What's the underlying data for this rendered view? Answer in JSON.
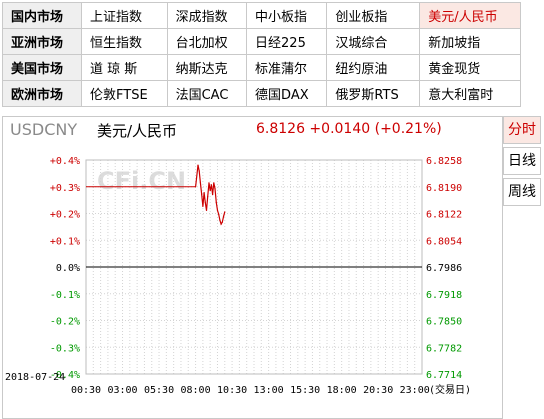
{
  "markets": [
    {
      "region": "国内市场",
      "items": [
        "上证指数",
        "深成指数",
        "中小板指",
        "创业板指",
        "美元/人民币"
      ]
    },
    {
      "region": "亚洲市场",
      "items": [
        "恒生指数",
        "台北加权",
        "日经225",
        "汉城综合",
        "新加坡指"
      ]
    },
    {
      "region": "美国市场",
      "items": [
        "道 琼 斯",
        "纳斯达克",
        "标准蒲尔",
        "纽约原油",
        "黄金现货"
      ]
    },
    {
      "region": "欧洲市场",
      "items": [
        "伦敦FTSE",
        "法国CAC",
        "德国DAX",
        "俄罗斯RTS",
        "意大利富时"
      ]
    }
  ],
  "active_item": "美元/人民币",
  "chart_header": {
    "symbol": "USDCNY",
    "name": "美元/人民币",
    "value_line": "6.8126 +0.0140 (+0.21%)"
  },
  "tabs": [
    "分时",
    "日线",
    "周线"
  ],
  "active_tab": "分时",
  "watermark": "CFi.CN",
  "date_label": "2018-07-24",
  "colors": {
    "up": "#cc0000",
    "down": "#009900",
    "line": "#cc0000",
    "zero": "#000000",
    "grid": "#d4d4d4"
  },
  "chart_data": {
    "type": "line",
    "title": "",
    "xlabel": "(交易日)",
    "ylabel": "",
    "x_ticks": [
      "00:30",
      "03:00",
      "05:30",
      "08:00",
      "10:30",
      "13:00",
      "15:30",
      "18:00",
      "20:30",
      "23:00"
    ],
    "x_range": [
      "00:30",
      "23:30"
    ],
    "left_ticks": [
      "+0.4%",
      "+0.3%",
      "+0.2%",
      "+0.1%",
      "0.0%",
      "-0.1%",
      "-0.2%",
      "-0.3%",
      "-0.4%"
    ],
    "right_ticks": [
      "6.8258",
      "6.8190",
      "6.8122",
      "6.8054",
      "6.7986",
      "6.7918",
      "6.7850",
      "6.7782",
      "6.7714"
    ],
    "ylim": [
      6.7714,
      6.8258
    ],
    "prev_close": 6.7986,
    "reference_level": 6.819,
    "reference_until": "08:00",
    "series": [
      {
        "values": [
          [
            "08:00",
            6.819
          ],
          [
            "08:10",
            6.8245
          ],
          [
            "08:15",
            6.823
          ],
          [
            "08:20",
            6.82
          ],
          [
            "08:25",
            6.817
          ],
          [
            "08:30",
            6.814
          ],
          [
            "08:35",
            6.8175
          ],
          [
            "08:40",
            6.815
          ],
          [
            "08:45",
            6.813
          ],
          [
            "08:50",
            6.8165
          ],
          [
            "08:55",
            6.82
          ],
          [
            "09:00",
            6.818
          ],
          [
            "09:05",
            6.8195
          ],
          [
            "09:10",
            6.817
          ],
          [
            "09:15",
            6.82
          ],
          [
            "09:20",
            6.8185
          ],
          [
            "09:25",
            6.815
          ],
          [
            "09:30",
            6.813
          ],
          [
            "09:35",
            6.812
          ],
          [
            "09:40",
            6.8105
          ],
          [
            "09:45",
            6.8095
          ],
          [
            "09:50",
            6.81
          ],
          [
            "09:55",
            6.8115
          ],
          [
            "10:00",
            6.8126
          ]
        ]
      }
    ]
  }
}
